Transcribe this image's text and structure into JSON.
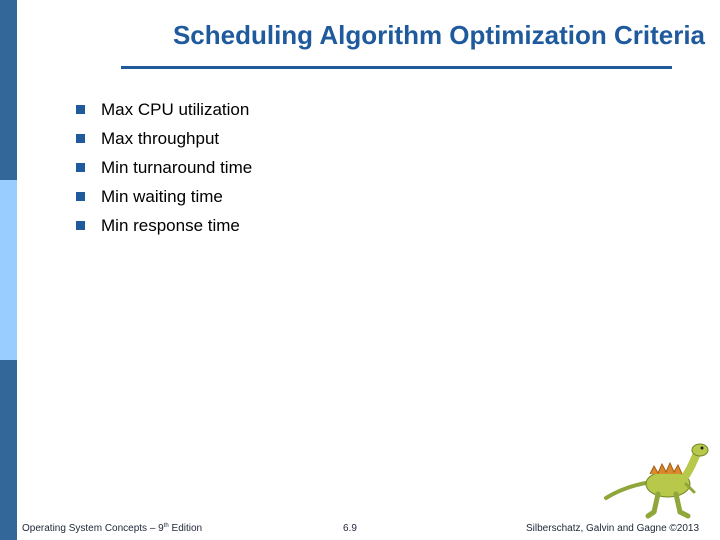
{
  "slide": {
    "title": "Scheduling Algorithm Optimization Criteria",
    "bullets": [
      "Max CPU utilization",
      "Max throughput",
      "Min turnaround time",
      "Min waiting time",
      "Min response time"
    ]
  },
  "footer": {
    "book_prefix": "Operating System Concepts – 9",
    "book_sup": "th",
    "book_suffix": " Edition",
    "page": "6.9",
    "copyright": "Silberschatz, Galvin and Gagne ©2013"
  },
  "decoration": {
    "mascot_icon": "dinosaur-icon",
    "bullet_icon": "square-bullet-icon"
  },
  "colors": {
    "accent": "#1f5a9c",
    "sidebar_dark": "#336699",
    "sidebar_light": "#99ccff"
  }
}
